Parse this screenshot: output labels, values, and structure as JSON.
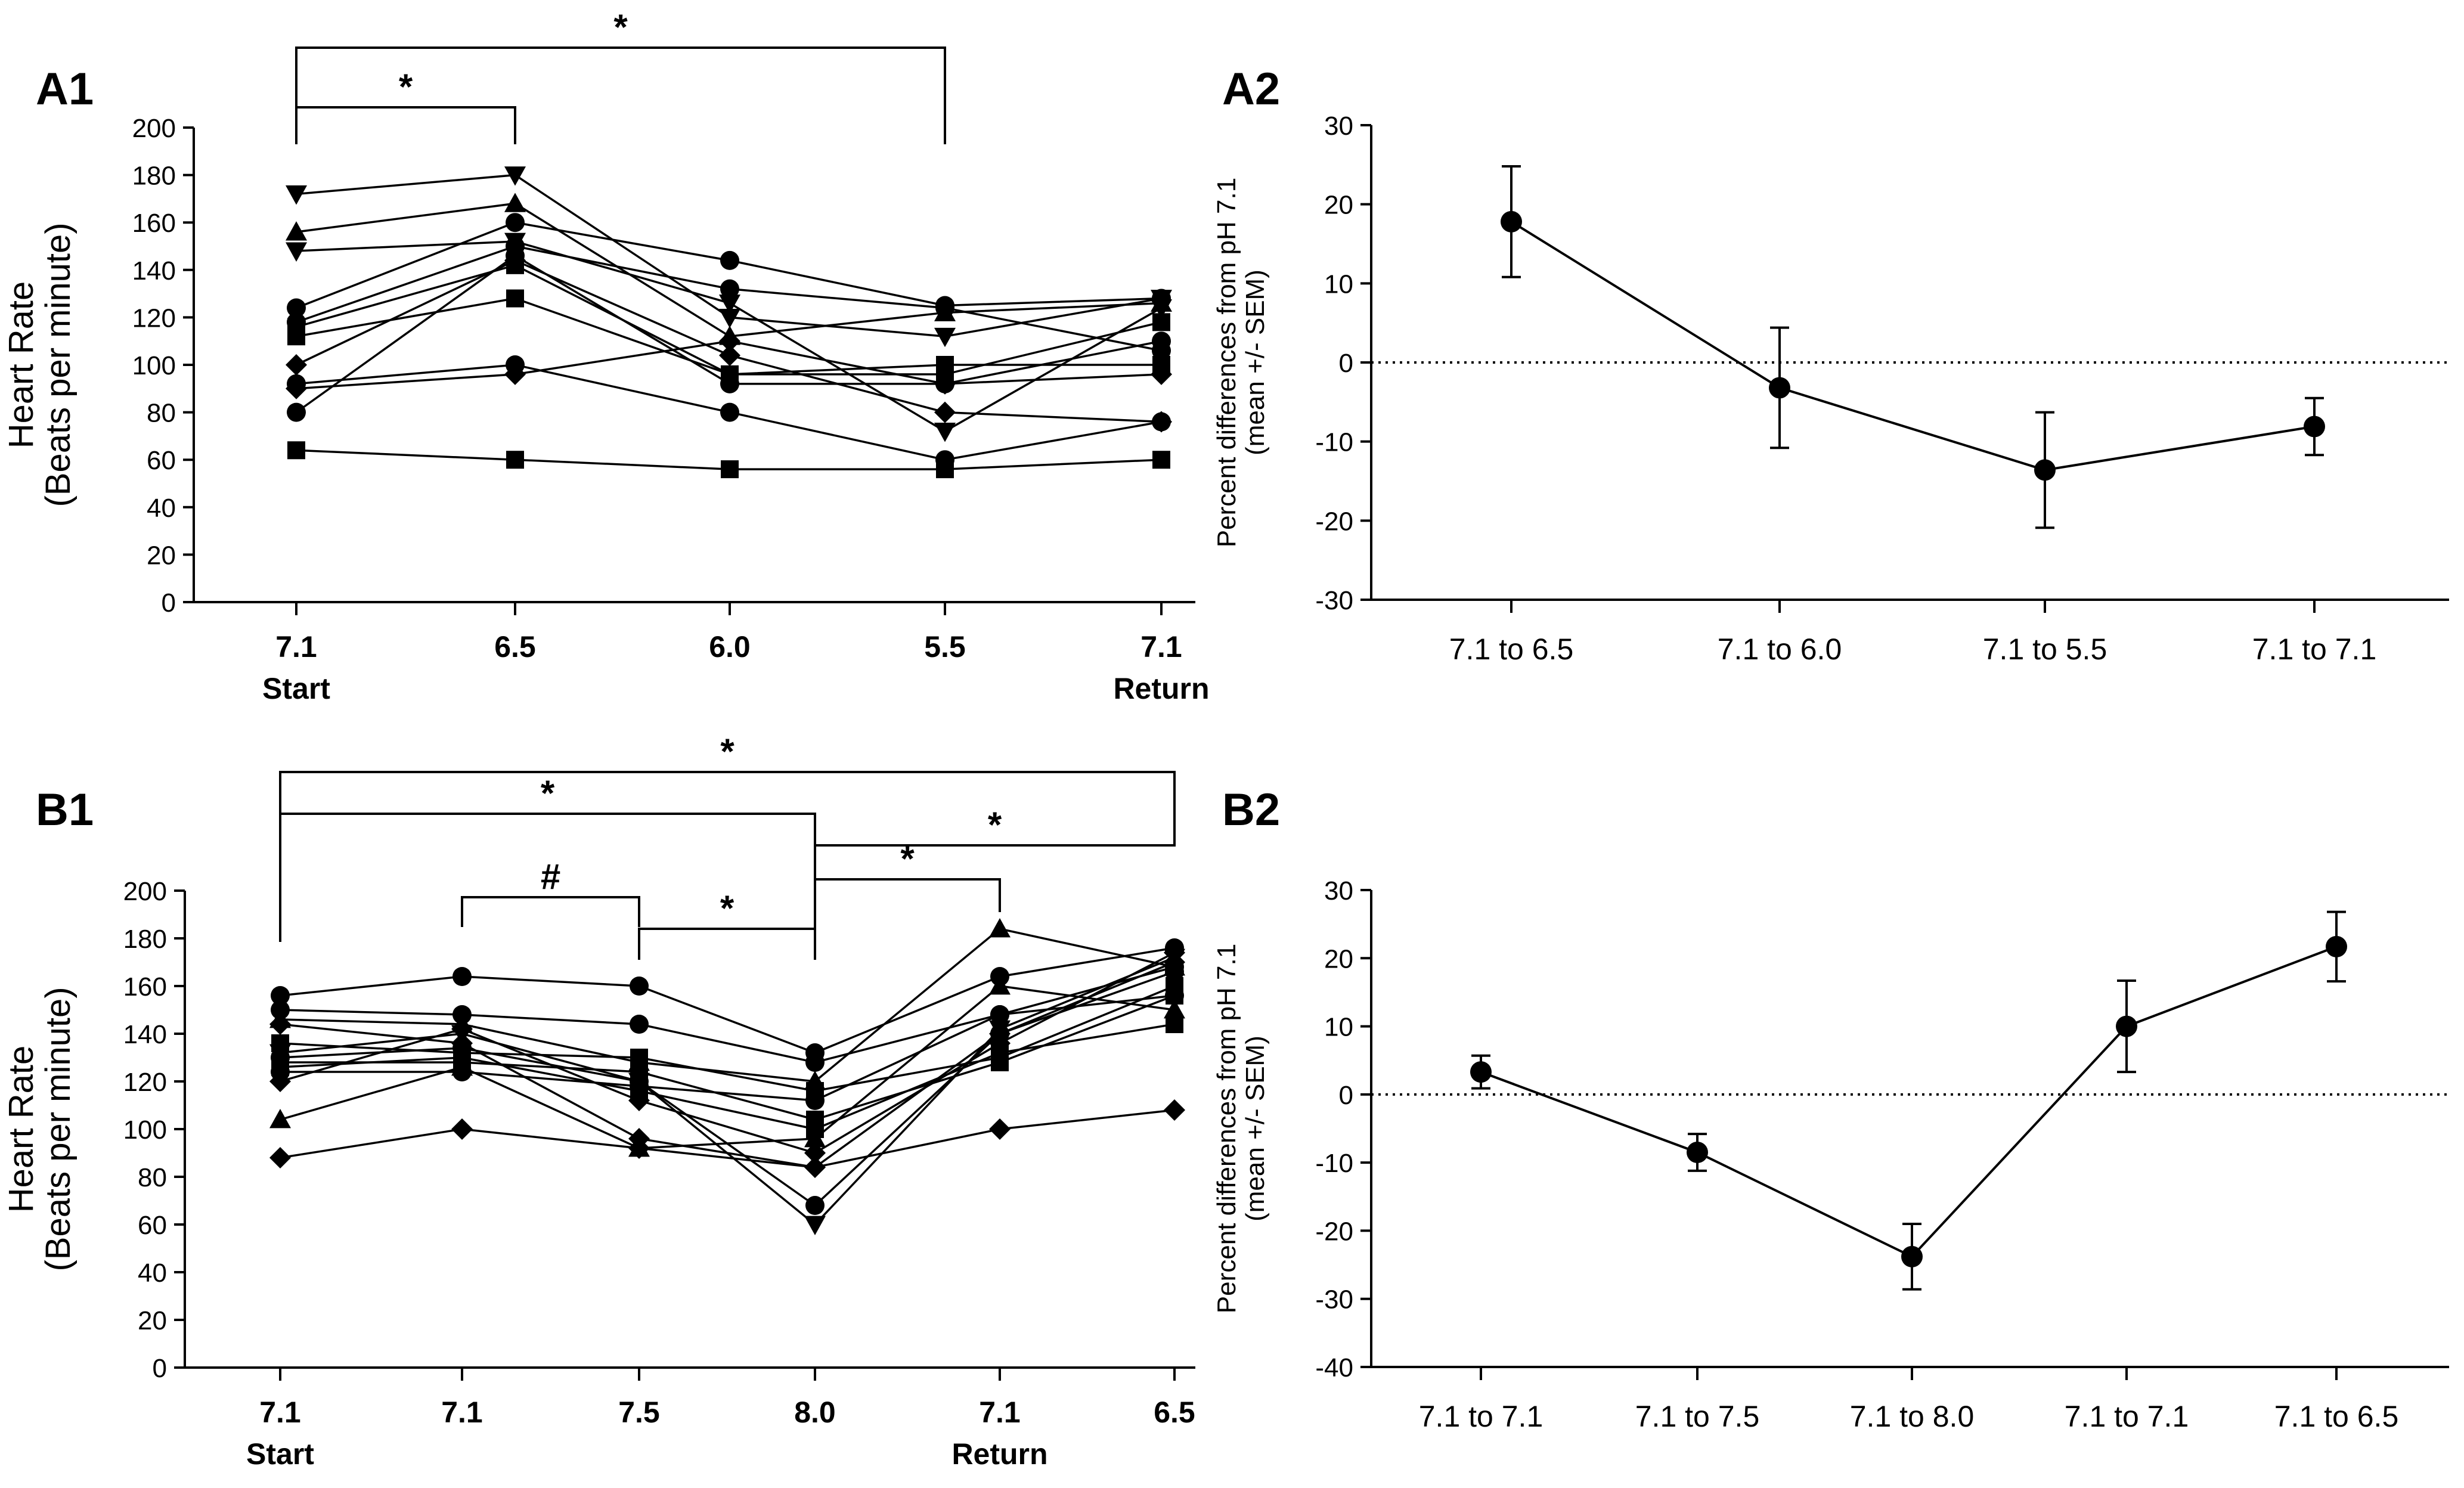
{
  "chart_data": [
    {
      "panel": "A1",
      "type": "line",
      "ylabel": [
        "Heart Rate",
        "(Beats per minute)"
      ],
      "ylim": [
        0,
        200
      ],
      "yticks": [
        "0",
        "20",
        "40",
        "60",
        "80",
        "100",
        "120",
        "140",
        "160",
        "180",
        "200"
      ],
      "categories": [
        "7.1",
        "6.5",
        "6.0",
        "5.5",
        "7.1"
      ],
      "category_sublabels": [
        "Start",
        "",
        "",
        "",
        "Return"
      ],
      "series": [
        {
          "marker": "triangle-down",
          "values": [
            172,
            180,
            120,
            112,
            128
          ]
        },
        {
          "marker": "triangle-up",
          "values": [
            156,
            168,
            112,
            122,
            126
          ]
        },
        {
          "marker": "triangle-down",
          "values": [
            148,
            152,
            126,
            72,
            124
          ]
        },
        {
          "marker": "circle",
          "values": [
            124,
            160,
            144,
            125,
            128
          ]
        },
        {
          "marker": "circle",
          "values": [
            118,
            150,
            132,
            124,
            106
          ]
        },
        {
          "marker": "square",
          "values": [
            116,
            142,
            96,
            96,
            118
          ]
        },
        {
          "marker": "square",
          "values": [
            112,
            128,
            96,
            100,
            100
          ]
        },
        {
          "marker": "diamond",
          "values": [
            100,
            144,
            104,
            80,
            76
          ]
        },
        {
          "marker": "circle",
          "values": [
            92,
            100,
            80,
            60,
            76
          ]
        },
        {
          "marker": "diamond",
          "values": [
            90,
            96,
            110,
            92,
            96
          ]
        },
        {
          "marker": "circle",
          "values": [
            80,
            146,
            92,
            92,
            110
          ]
        },
        {
          "marker": "square",
          "values": [
            64,
            60,
            56,
            56,
            60
          ]
        }
      ],
      "significance": [
        {
          "from": 0,
          "to": 1,
          "label": "*"
        },
        {
          "from": 0,
          "to": 3,
          "label": "*"
        }
      ]
    },
    {
      "panel": "A2",
      "type": "line",
      "ylabel": [
        "Percent differences from pH 7.1",
        "(mean +/- SEM)"
      ],
      "ylim": [
        -30,
        30
      ],
      "yticks": [
        "-30",
        "-20",
        "-10",
        "0",
        "10",
        "20",
        "30"
      ],
      "categories": [
        "7.1 to 6.5",
        "7.1 to 6.0",
        "7.1 to 5.5",
        "7.1 to 7.1"
      ],
      "values": [
        17.8,
        -3.2,
        -13.6,
        -8.1
      ],
      "errors": [
        7,
        7.6,
        7.3,
        3.6
      ],
      "reference_line": 0
    },
    {
      "panel": "B1",
      "type": "line",
      "ylabel": [
        "Heart Rate",
        "(Beats per minute)"
      ],
      "ylim": [
        0,
        200
      ],
      "yticks": [
        "0",
        "20",
        "40",
        "60",
        "80",
        "100",
        "120",
        "140",
        "160",
        "180",
        "200"
      ],
      "categories": [
        "7.1",
        "7.1",
        "7.5",
        "8.0",
        "7.1",
        "6.5"
      ],
      "category_sublabels": [
        "Start",
        "",
        "",
        "",
        "Return",
        ""
      ],
      "series": [
        {
          "marker": "circle",
          "values": [
            156,
            164,
            160,
            132,
            164,
            176
          ]
        },
        {
          "marker": "circle",
          "values": [
            150,
            148,
            144,
            128,
            148,
            168
          ]
        },
        {
          "marker": "triangle-up",
          "values": [
            146,
            144,
            128,
            120,
            184,
            168
          ]
        },
        {
          "marker": "diamond",
          "values": [
            144,
            136,
            96,
            84,
            140,
            170
          ]
        },
        {
          "marker": "square",
          "values": [
            136,
            132,
            130,
            116,
            130,
            160
          ]
        },
        {
          "marker": "triangle-down",
          "values": [
            132,
            140,
            120,
            60,
            142,
            172
          ]
        },
        {
          "marker": "square",
          "values": [
            128,
            128,
            124,
            104,
            128,
            156
          ]
        },
        {
          "marker": "circle",
          "values": [
            124,
            124,
            118,
            112,
            148,
            156
          ]
        },
        {
          "marker": "diamond",
          "values": [
            120,
            142,
            112,
            90,
            136,
            174
          ]
        },
        {
          "marker": "square",
          "values": [
            126,
            130,
            116,
            100,
            132,
            144
          ]
        },
        {
          "marker": "triangle-up",
          "values": [
            104,
            126,
            92,
            96,
            160,
            150
          ]
        },
        {
          "marker": "circle",
          "values": [
            130,
            134,
            120,
            68,
            140,
            166
          ]
        },
        {
          "marker": "diamond",
          "values": [
            88,
            100,
            92,
            84,
            100,
            108
          ]
        }
      ],
      "significance": [
        {
          "from": 0,
          "to": 5,
          "label": "*"
        },
        {
          "from": 0,
          "to": 3,
          "label": "*"
        },
        {
          "from": 3,
          "to": 5,
          "label": "*"
        },
        {
          "from": 3,
          "to": 4,
          "label": "*"
        },
        {
          "from": 1,
          "to": 2,
          "label": "#"
        },
        {
          "from": 2,
          "to": 3,
          "label": "*"
        }
      ]
    },
    {
      "panel": "B2",
      "type": "line",
      "ylabel": [
        "Percent differences from pH 7.1",
        "(mean +/- SEM)"
      ],
      "ylim": [
        -40,
        30
      ],
      "yticks": [
        "-40",
        "-30",
        "-20",
        "-10",
        "0",
        "10",
        "20",
        "30"
      ],
      "categories": [
        "7.1 to 7.1",
        "7.1 to 7.5",
        "7.1 to 8.0",
        "7.1 to 7.1",
        "7.1 to 6.5"
      ],
      "values": [
        3.3,
        -8.5,
        -23.8,
        10,
        21.7
      ],
      "errors": [
        2.4,
        2.7,
        4.8,
        6.7,
        5.1
      ],
      "reference_line": 0
    }
  ]
}
